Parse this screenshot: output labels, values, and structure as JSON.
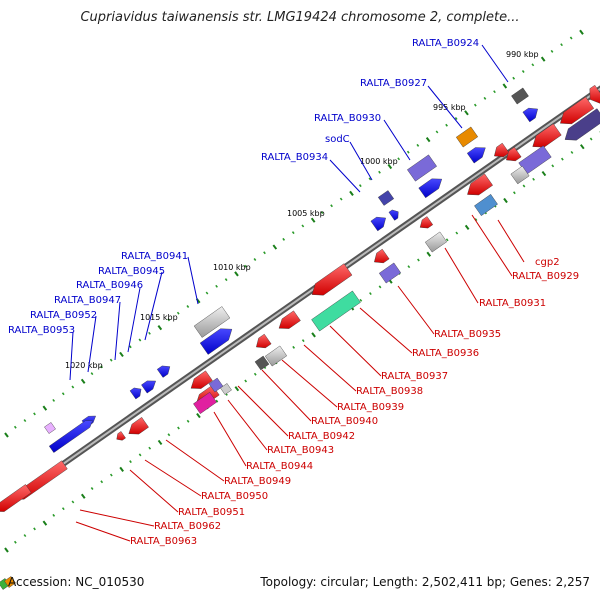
{
  "title": "Cupriavidus taiwanensis str. LMG19424 chromosome 2, complete...",
  "footer": {
    "accession": "Accession: NC_010530",
    "summary": "Topology: circular; Length: 2,502,411 bp; Genes: 2,257"
  },
  "colors": {
    "forward_label": "#0000cc",
    "reverse_label": "#cc0000",
    "backbone": "#888888"
  },
  "ticks": [
    {
      "label": "990 kbp"
    },
    {
      "label": "995 kbp"
    },
    {
      "label": "1000 kbp"
    },
    {
      "label": "1005 kbp"
    },
    {
      "label": "1010 kbp"
    },
    {
      "label": "1015 kbp"
    },
    {
      "label": "1020 kbp"
    }
  ],
  "forward_labels": [
    {
      "text": "RALTA_B0924"
    },
    {
      "text": "RALTA_B0927"
    },
    {
      "text": "RALTA_B0930"
    },
    {
      "text": "sodC"
    },
    {
      "text": "RALTA_B0934"
    },
    {
      "text": "RALTA_B0941"
    },
    {
      "text": "RALTA_B0945"
    },
    {
      "text": "RALTA_B0946"
    },
    {
      "text": "RALTA_B0947"
    },
    {
      "text": "RALTA_B0952"
    },
    {
      "text": "RALTA_B0953"
    }
  ],
  "reverse_labels": [
    {
      "text": "cgp2"
    },
    {
      "text": "RALTA_B0929"
    },
    {
      "text": "RALTA_B0931"
    },
    {
      "text": "RALTA_B0935"
    },
    {
      "text": "RALTA_B0936"
    },
    {
      "text": "RALTA_B0937"
    },
    {
      "text": "RALTA_B0938"
    },
    {
      "text": "RALTA_B0939"
    },
    {
      "text": "RALTA_B0940"
    },
    {
      "text": "RALTA_B0942"
    },
    {
      "text": "RALTA_B0943"
    },
    {
      "text": "RALTA_B0944"
    },
    {
      "text": "RALTA_B0949"
    },
    {
      "text": "RALTA_B0950"
    },
    {
      "text": "RALTA_B0951"
    },
    {
      "text": "RALTA_B0962"
    },
    {
      "text": "RALTA_B0963"
    }
  ]
}
